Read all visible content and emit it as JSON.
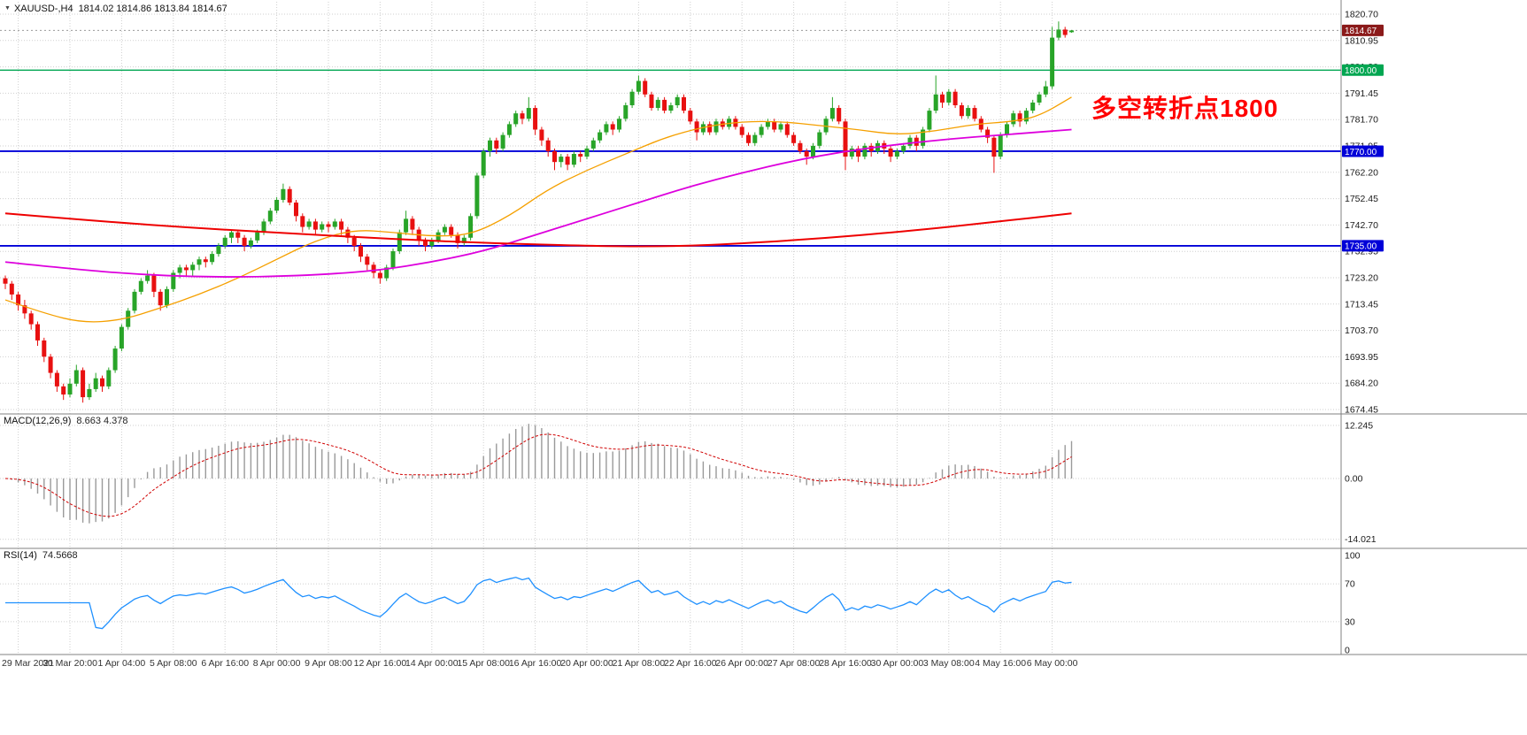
{
  "header": {
    "symbol_period": "XAUUSD-,H4",
    "ohlc": "1814.02 1814.86 1813.84 1814.67"
  },
  "annotation": {
    "text": "多空转折点1800",
    "color": "#FF0000"
  },
  "macd_panel": {
    "label": "MACD(12,26,9)",
    "values": "8.663 4.378",
    "axis_labels": [
      "12.245",
      "0.00",
      "-14.021"
    ]
  },
  "rsi_panel": {
    "label": "RSI(14)",
    "value": "74.5668",
    "axis_labels": [
      "100",
      "70",
      "30",
      "0"
    ],
    "levels": [
      70,
      30
    ]
  },
  "price_axis": {
    "labels": [
      "1820.70",
      "1810.95",
      "1801.20",
      "1791.45",
      "1781.70",
      "1771.95",
      "1762.20",
      "1752.45",
      "1742.70",
      "1732.95",
      "1723.20",
      "1713.45",
      "1703.70",
      "1693.95",
      "1684.20",
      "1674.45"
    ],
    "boxes": [
      {
        "text": "1814.67",
        "price": 1814.67,
        "color": "#8B1A1A"
      },
      {
        "text": "1800.00",
        "price": 1800.0,
        "color": "#00A651"
      },
      {
        "text": "1770.00",
        "price": 1770.0,
        "color": "#0000D8"
      },
      {
        "text": "1735.00",
        "price": 1735.0,
        "color": "#0000D8"
      }
    ]
  },
  "time_axis": {
    "labels": [
      {
        "idx": 2,
        "text": "29 Mar 2021"
      },
      {
        "idx": 10,
        "text": "30 Mar 20:00"
      },
      {
        "idx": 18,
        "text": "1 Apr 04:00"
      },
      {
        "idx": 26,
        "text": "5 Apr 08:00"
      },
      {
        "idx": 34,
        "text": "6 Apr 16:00"
      },
      {
        "idx": 42,
        "text": "8 Apr 00:00"
      },
      {
        "idx": 50,
        "text": "9 Apr 08:00"
      },
      {
        "idx": 58,
        "text": "12 Apr 16:00"
      },
      {
        "idx": 66,
        "text": "14 Apr 00:00"
      },
      {
        "idx": 74,
        "text": "15 Apr 08:00"
      },
      {
        "idx": 82,
        "text": "16 Apr 16:00"
      },
      {
        "idx": 90,
        "text": "20 Apr 00:00"
      },
      {
        "idx": 98,
        "text": "21 Apr 08:00"
      },
      {
        "idx": 106,
        "text": "22 Apr 16:00"
      },
      {
        "idx": 114,
        "text": "26 Apr 00:00"
      },
      {
        "idx": 122,
        "text": "27 Apr 08:00"
      },
      {
        "idx": 130,
        "text": "28 Apr 16:00"
      },
      {
        "idx": 138,
        "text": "30 Apr 00:00"
      },
      {
        "idx": 146,
        "text": "3 May 08:00"
      },
      {
        "idx": 154,
        "text": "4 May 16:00"
      },
      {
        "idx": 162,
        "text": "6 May 00:00"
      }
    ]
  },
  "chart_data": {
    "type": "candlestick",
    "symbol": "XAUUSD",
    "timeframe": "H4",
    "title": "XAUUSD-,H4",
    "ylim": [
      1674.45,
      1820.7
    ],
    "current_price": 1814.67,
    "hlines": [
      {
        "price": 1800.0,
        "color": "#00A651",
        "width": 1.4
      },
      {
        "price": 1770.0,
        "color": "#0000D8",
        "width": 1.8
      },
      {
        "price": 1735.0,
        "color": "#0000D8",
        "width": 1.8
      }
    ],
    "colors": {
      "up": "#28A428",
      "down": "#E81010",
      "grid": "#CFCFCF",
      "macd_hist": "#9A9A9A",
      "macd_signal": "#D00000",
      "rsi_line": "#1E90FF",
      "separator": "#808080",
      "current_line": "#9A9A9A"
    },
    "candles": [
      [
        1723,
        1724,
        1719,
        1721
      ],
      [
        1721,
        1722,
        1715,
        1717
      ],
      [
        1717,
        1718,
        1711,
        1713
      ],
      [
        1713,
        1715,
        1708,
        1710
      ],
      [
        1710,
        1711,
        1704,
        1706
      ],
      [
        1706,
        1707,
        1698,
        1700
      ],
      [
        1700,
        1701,
        1692,
        1694
      ],
      [
        1694,
        1695,
        1686,
        1688
      ],
      [
        1688,
        1689,
        1681,
        1683
      ],
      [
        1683,
        1684,
        1678,
        1680
      ],
      [
        1680,
        1686,
        1679,
        1684
      ],
      [
        1684,
        1691,
        1683,
        1689
      ],
      [
        1689,
        1690,
        1677,
        1679
      ],
      [
        1679,
        1684,
        1678,
        1682
      ],
      [
        1682,
        1688,
        1681,
        1686
      ],
      [
        1686,
        1687,
        1681,
        1683
      ],
      [
        1683,
        1690,
        1682,
        1689
      ],
      [
        1689,
        1698,
        1688,
        1697
      ],
      [
        1697,
        1706,
        1696,
        1705
      ],
      [
        1705,
        1712,
        1704,
        1711
      ],
      [
        1711,
        1719,
        1710,
        1718
      ],
      [
        1718,
        1723,
        1717,
        1722
      ],
      [
        1722,
        1726,
        1721,
        1724
      ],
      [
        1724,
        1725,
        1716,
        1718
      ],
      [
        1718,
        1719,
        1711,
        1713
      ],
      [
        1713,
        1720,
        1712,
        1719
      ],
      [
        1719,
        1726,
        1718,
        1725
      ],
      [
        1725,
        1728,
        1723,
        1727
      ],
      [
        1727,
        1728,
        1724,
        1726
      ],
      [
        1726,
        1729,
        1724,
        1728
      ],
      [
        1728,
        1731,
        1726,
        1730
      ],
      [
        1730,
        1731,
        1727,
        1729
      ],
      [
        1729,
        1733,
        1728,
        1732
      ],
      [
        1732,
        1736,
        1731,
        1735
      ],
      [
        1735,
        1739,
        1734,
        1738
      ],
      [
        1738,
        1741,
        1736,
        1740
      ],
      [
        1740,
        1741,
        1736,
        1738
      ],
      [
        1738,
        1739,
        1733,
        1735
      ],
      [
        1735,
        1738,
        1734,
        1737
      ],
      [
        1737,
        1741,
        1736,
        1740
      ],
      [
        1740,
        1745,
        1739,
        1744
      ],
      [
        1744,
        1749,
        1743,
        1748
      ],
      [
        1748,
        1753,
        1747,
        1752
      ],
      [
        1752,
        1758,
        1751,
        1756
      ],
      [
        1756,
        1757,
        1750,
        1751
      ],
      [
        1751,
        1752,
        1744,
        1746
      ],
      [
        1746,
        1747,
        1740,
        1742
      ],
      [
        1742,
        1745,
        1741,
        1744
      ],
      [
        1744,
        1745,
        1739,
        1741
      ],
      [
        1741,
        1744,
        1740,
        1743
      ],
      [
        1743,
        1744,
        1740,
        1742
      ],
      [
        1742,
        1745,
        1741,
        1744
      ],
      [
        1744,
        1745,
        1739,
        1741
      ],
      [
        1741,
        1742,
        1736,
        1738
      ],
      [
        1738,
        1739,
        1733,
        1735
      ],
      [
        1735,
        1736,
        1729,
        1731
      ],
      [
        1731,
        1732,
        1726,
        1728
      ],
      [
        1728,
        1729,
        1723,
        1725
      ],
      [
        1725,
        1726,
        1721,
        1723
      ],
      [
        1723,
        1728,
        1722,
        1727
      ],
      [
        1727,
        1734,
        1726,
        1733
      ],
      [
        1733,
        1741,
        1732,
        1740
      ],
      [
        1740,
        1748,
        1739,
        1745
      ],
      [
        1745,
        1746,
        1739,
        1741
      ],
      [
        1741,
        1742,
        1735,
        1737
      ],
      [
        1737,
        1738,
        1733,
        1735
      ],
      [
        1735,
        1738,
        1734,
        1737
      ],
      [
        1737,
        1741,
        1736,
        1740
      ],
      [
        1740,
        1743,
        1739,
        1742
      ],
      [
        1742,
        1743,
        1738,
        1739
      ],
      [
        1739,
        1740,
        1734,
        1736
      ],
      [
        1736,
        1739,
        1735,
        1738
      ],
      [
        1738,
        1747,
        1737,
        1746
      ],
      [
        1746,
        1762,
        1745,
        1761
      ],
      [
        1761,
        1771,
        1760,
        1770
      ],
      [
        1770,
        1775,
        1768,
        1774
      ],
      [
        1774,
        1775,
        1769,
        1771
      ],
      [
        1771,
        1777,
        1770,
        1776
      ],
      [
        1776,
        1781,
        1775,
        1780
      ],
      [
        1780,
        1785,
        1779,
        1784
      ],
      [
        1784,
        1785,
        1780,
        1782
      ],
      [
        1782,
        1790,
        1781,
        1786
      ],
      [
        1786,
        1787,
        1776,
        1778
      ],
      [
        1778,
        1779,
        1772,
        1774
      ],
      [
        1774,
        1775,
        1768,
        1770
      ],
      [
        1770,
        1771,
        1763,
        1766
      ],
      [
        1766,
        1769,
        1764,
        1768
      ],
      [
        1768,
        1769,
        1763,
        1765
      ],
      [
        1765,
        1770,
        1764,
        1769
      ],
      [
        1769,
        1770,
        1766,
        1768
      ],
      [
        1768,
        1772,
        1767,
        1771
      ],
      [
        1771,
        1775,
        1770,
        1774
      ],
      [
        1774,
        1778,
        1773,
        1777
      ],
      [
        1777,
        1781,
        1776,
        1780
      ],
      [
        1780,
        1781,
        1776,
        1778
      ],
      [
        1778,
        1783,
        1777,
        1782
      ],
      [
        1782,
        1788,
        1781,
        1787
      ],
      [
        1787,
        1793,
        1786,
        1792
      ],
      [
        1792,
        1798,
        1791,
        1796
      ],
      [
        1796,
        1797,
        1790,
        1791
      ],
      [
        1791,
        1792,
        1785,
        1786
      ],
      [
        1786,
        1790,
        1785,
        1789
      ],
      [
        1789,
        1790,
        1784,
        1785
      ],
      [
        1785,
        1788,
        1784,
        1787
      ],
      [
        1787,
        1791,
        1786,
        1790
      ],
      [
        1790,
        1791,
        1784,
        1785
      ],
      [
        1785,
        1786,
        1780,
        1781
      ],
      [
        1781,
        1782,
        1774,
        1777
      ],
      [
        1777,
        1781,
        1776,
        1780
      ],
      [
        1780,
        1781,
        1776,
        1777
      ],
      [
        1777,
        1782,
        1776,
        1781
      ],
      [
        1781,
        1782,
        1778,
        1779
      ],
      [
        1779,
        1783,
        1778,
        1782
      ],
      [
        1782,
        1783,
        1778,
        1779
      ],
      [
        1779,
        1780,
        1775,
        1776
      ],
      [
        1776,
        1777,
        1772,
        1773
      ],
      [
        1773,
        1777,
        1772,
        1776
      ],
      [
        1776,
        1780,
        1775,
        1779
      ],
      [
        1779,
        1782,
        1778,
        1781
      ],
      [
        1781,
        1782,
        1777,
        1778
      ],
      [
        1778,
        1781,
        1777,
        1780
      ],
      [
        1780,
        1781,
        1775,
        1776
      ],
      [
        1776,
        1777,
        1772,
        1773
      ],
      [
        1773,
        1774,
        1769,
        1770
      ],
      [
        1770,
        1771,
        1765,
        1768
      ],
      [
        1768,
        1773,
        1767,
        1772
      ],
      [
        1772,
        1778,
        1771,
        1777
      ],
      [
        1777,
        1783,
        1776,
        1782
      ],
      [
        1782,
        1790,
        1781,
        1786
      ],
      [
        1786,
        1787,
        1780,
        1781
      ],
      [
        1781,
        1782,
        1763,
        1768
      ],
      [
        1768,
        1772,
        1767,
        1771
      ],
      [
        1771,
        1772,
        1766,
        1768
      ],
      [
        1768,
        1773,
        1767,
        1772
      ],
      [
        1772,
        1773,
        1768,
        1770
      ],
      [
        1770,
        1774,
        1769,
        1773
      ],
      [
        1773,
        1774,
        1769,
        1771
      ],
      [
        1771,
        1772,
        1766,
        1768
      ],
      [
        1768,
        1771,
        1767,
        1770
      ],
      [
        1770,
        1773,
        1769,
        1772
      ],
      [
        1772,
        1776,
        1771,
        1775
      ],
      [
        1775,
        1776,
        1770,
        1772
      ],
      [
        1772,
        1779,
        1771,
        1778
      ],
      [
        1778,
        1786,
        1777,
        1785
      ],
      [
        1785,
        1798,
        1784,
        1791
      ],
      [
        1791,
        1792,
        1786,
        1788
      ],
      [
        1788,
        1793,
        1787,
        1792
      ],
      [
        1792,
        1793,
        1786,
        1787
      ],
      [
        1787,
        1788,
        1782,
        1783
      ],
      [
        1783,
        1787,
        1782,
        1786
      ],
      [
        1786,
        1787,
        1781,
        1782
      ],
      [
        1782,
        1783,
        1777,
        1778
      ],
      [
        1778,
        1779,
        1773,
        1775
      ],
      [
        1775,
        1776,
        1762,
        1768
      ],
      [
        1768,
        1777,
        1767,
        1776
      ],
      [
        1776,
        1781,
        1775,
        1780
      ],
      [
        1780,
        1785,
        1779,
        1784
      ],
      [
        1784,
        1785,
        1779,
        1781
      ],
      [
        1781,
        1786,
        1780,
        1785
      ],
      [
        1785,
        1789,
        1784,
        1788
      ],
      [
        1788,
        1792,
        1787,
        1791
      ],
      [
        1791,
        1796,
        1790,
        1794
      ],
      [
        1794,
        1816,
        1793,
        1812
      ],
      [
        1812,
        1818,
        1811,
        1815
      ],
      [
        1815,
        1816,
        1812,
        1813
      ],
      [
        1814.02,
        1814.86,
        1813.84,
        1814.67
      ]
    ],
    "moving_averages": [
      {
        "name": "ma-fast-orange",
        "color": "#F5A000",
        "width": 1.3,
        "points": [
          [
            0,
            1715
          ],
          [
            6,
            1710
          ],
          [
            12,
            1706.5
          ],
          [
            18,
            1707.5
          ],
          [
            24,
            1712
          ],
          [
            30,
            1717
          ],
          [
            36,
            1723
          ],
          [
            42,
            1730
          ],
          [
            48,
            1737
          ],
          [
            54,
            1741
          ],
          [
            60,
            1740
          ],
          [
            66,
            1738.5
          ],
          [
            72,
            1739
          ],
          [
            78,
            1746
          ],
          [
            84,
            1756
          ],
          [
            90,
            1763
          ],
          [
            96,
            1769
          ],
          [
            102,
            1775
          ],
          [
            108,
            1779
          ],
          [
            114,
            1781
          ],
          [
            120,
            1781
          ],
          [
            126,
            1779.5
          ],
          [
            132,
            1778
          ],
          [
            138,
            1776
          ],
          [
            144,
            1777.5
          ],
          [
            150,
            1780
          ],
          [
            156,
            1781
          ],
          [
            160,
            1783
          ],
          [
            165,
            1790
          ]
        ]
      },
      {
        "name": "ma-medium-magenta",
        "color": "#DD00DD",
        "width": 1.8,
        "points": [
          [
            0,
            1729
          ],
          [
            10,
            1726.5
          ],
          [
            20,
            1724.5
          ],
          [
            30,
            1723.5
          ],
          [
            40,
            1723.5
          ],
          [
            50,
            1724.5
          ],
          [
            58,
            1726
          ],
          [
            66,
            1729
          ],
          [
            74,
            1733
          ],
          [
            82,
            1739
          ],
          [
            90,
            1745
          ],
          [
            98,
            1751
          ],
          [
            106,
            1757
          ],
          [
            114,
            1762
          ],
          [
            122,
            1766.5
          ],
          [
            130,
            1770
          ],
          [
            138,
            1772.5
          ],
          [
            146,
            1774.5
          ],
          [
            154,
            1776
          ],
          [
            165,
            1778
          ]
        ]
      },
      {
        "name": "ma-slow-red",
        "color": "#EE0000",
        "width": 2,
        "points": [
          [
            0,
            1747
          ],
          [
            15,
            1744
          ],
          [
            30,
            1741.5
          ],
          [
            45,
            1739.5
          ],
          [
            60,
            1737.5
          ],
          [
            75,
            1736
          ],
          [
            90,
            1735
          ],
          [
            100,
            1734.7
          ],
          [
            110,
            1735.3
          ],
          [
            125,
            1737.5
          ],
          [
            140,
            1740.5
          ],
          [
            152,
            1743.5
          ],
          [
            165,
            1747
          ]
        ]
      }
    ],
    "macd": {
      "params": [
        12,
        26,
        9
      ],
      "scale_max": 12.245,
      "scale_min": -14.021,
      "last_main": 8.663,
      "last_signal": 4.378
    },
    "rsi": {
      "period": 14,
      "last": 74.5668,
      "levels": [
        70,
        30
      ]
    }
  }
}
